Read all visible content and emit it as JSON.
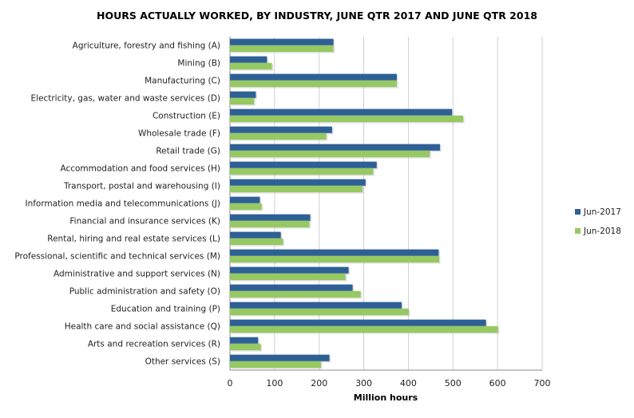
{
  "chart_data": {
    "type": "bar",
    "orientation": "horizontal",
    "title": "HOURS ACTUALLY WORKED, BY INDUSTRY, JUNE QTR 2017 AND JUNE QTR 2018",
    "xlabel": "Million hours",
    "ylabel": "",
    "xlim": [
      0,
      700
    ],
    "xticks": [
      "0",
      "100",
      "200",
      "300",
      "400",
      "500",
      "600",
      "700"
    ],
    "grid": "vertical",
    "legend": "right",
    "categories": [
      "Agriculture, forestry and fishing (A)",
      "Mining (B)",
      "Manufacturing (C)",
      "Electricity, gas, water and waste services (D)",
      "Construction (E)",
      "Wholesale trade (F)",
      "Retail trade (G)",
      "Accommodation and food services (H)",
      "Transport, postal and warehousing (I)",
      "Information media and telecommunications (J)",
      "Financial and insurance services (K)",
      "Rental, hiring and real estate services (L)",
      "Professional, scientific and technical services (M)",
      "Administrative and support services (N)",
      "Public administration and safety (O)",
      "Education and training (P)",
      "Health care and social assistance (Q)",
      "Arts and recreation services (R)",
      "Other services (S)"
    ],
    "series": [
      {
        "name": "Jun-2017",
        "color": "#2E6096",
        "values": [
          232,
          83,
          374,
          58,
          498,
          229,
          471,
          329,
          304,
          67,
          180,
          114,
          468,
          266,
          275,
          385,
          574,
          63,
          223
        ]
      },
      {
        "name": "Jun-2018",
        "color": "#96C962",
        "values": [
          232,
          94,
          374,
          54,
          523,
          216,
          448,
          321,
          297,
          71,
          178,
          119,
          469,
          259,
          293,
          401,
          601,
          69,
          204
        ]
      }
    ]
  }
}
